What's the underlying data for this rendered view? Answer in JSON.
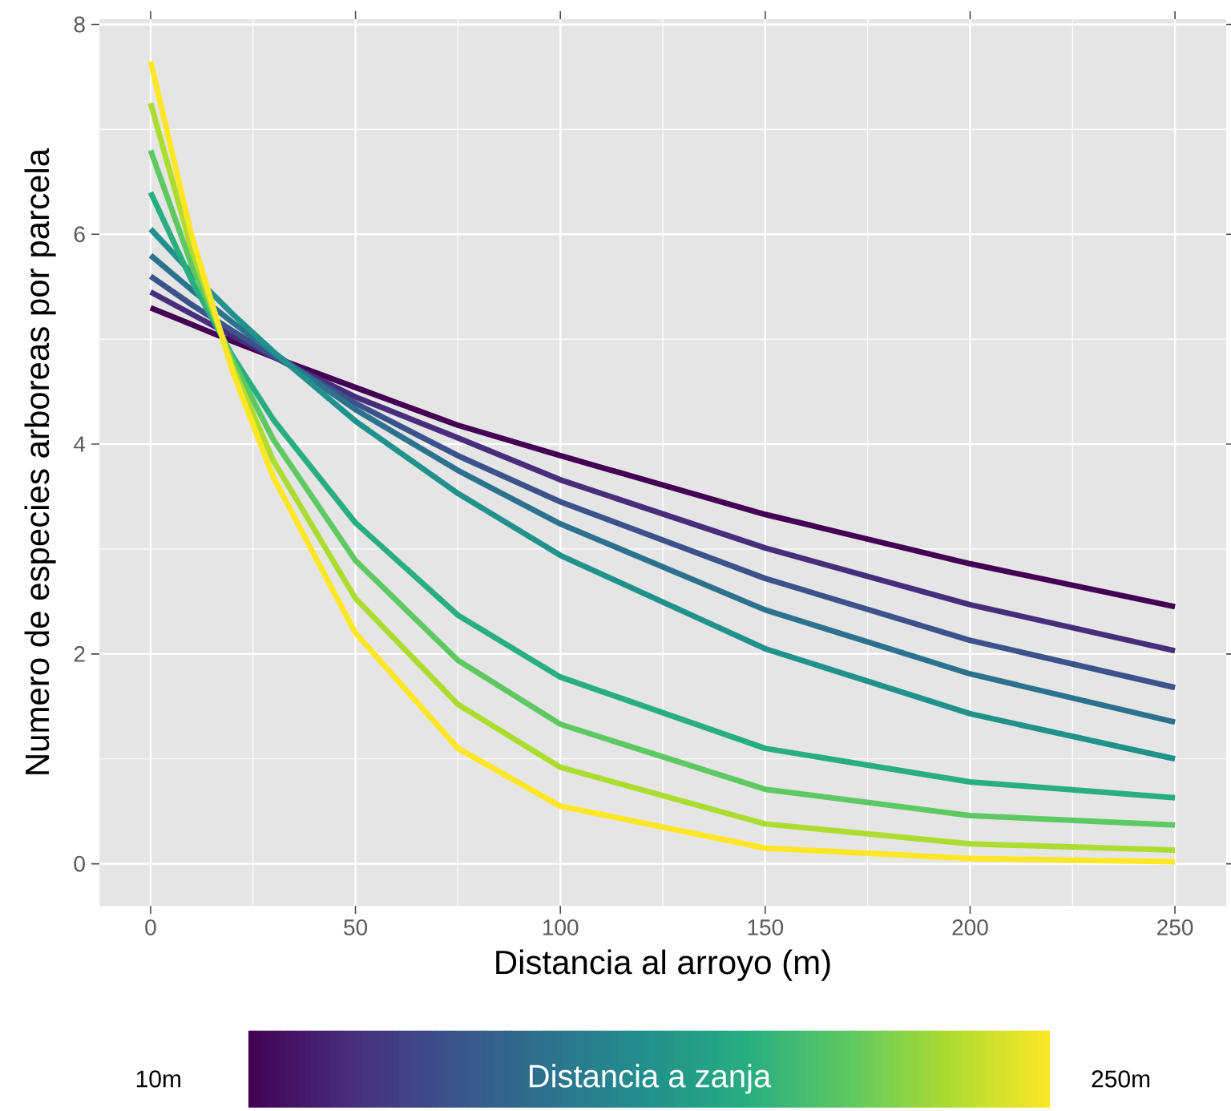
{
  "chart_data": {
    "type": "line",
    "xlabel": "Distancia al arroyo (m)",
    "ylabel": "Numero de especies arboreas por parcela",
    "x": [
      0,
      10,
      20,
      30,
      50,
      75,
      100,
      150,
      200,
      250
    ],
    "series": [
      {
        "color": "#440154",
        "values": [
          5.3,
          5.14,
          4.98,
          4.83,
          4.54,
          4.18,
          3.89,
          3.33,
          2.86,
          2.45
        ]
      },
      {
        "color": "#472d7b",
        "values": [
          5.45,
          5.24,
          5.03,
          4.83,
          4.45,
          4.06,
          3.66,
          3.01,
          2.47,
          2.03
        ]
      },
      {
        "color": "#3b528b",
        "values": [
          5.6,
          5.33,
          5.08,
          4.84,
          4.39,
          3.89,
          3.45,
          2.72,
          2.13,
          1.68
        ]
      },
      {
        "color": "#2c728e",
        "values": [
          5.8,
          5.47,
          5.16,
          4.87,
          4.33,
          3.75,
          3.24,
          2.42,
          1.81,
          1.35
        ]
      },
      {
        "color": "#21918c",
        "values": [
          6.05,
          5.63,
          5.24,
          4.88,
          4.22,
          3.53,
          2.94,
          2.05,
          1.43,
          1.0
        ]
      },
      {
        "color": "#28ae80",
        "values": [
          6.4,
          5.56,
          4.84,
          4.23,
          3.25,
          2.37,
          1.78,
          1.1,
          0.78,
          0.63
        ]
      },
      {
        "color": "#5ec962",
        "values": [
          6.8,
          5.71,
          4.8,
          4.04,
          2.89,
          1.94,
          1.33,
          0.71,
          0.46,
          0.37
        ]
      },
      {
        "color": "#addc30",
        "values": [
          7.25,
          5.86,
          4.74,
          3.84,
          2.53,
          1.52,
          0.92,
          0.38,
          0.19,
          0.13
        ]
      },
      {
        "color": "#fde725",
        "values": [
          7.65,
          5.99,
          4.69,
          3.68,
          2.2,
          1.1,
          0.55,
          0.15,
          0.05,
          0.02
        ]
      }
    ],
    "xlim": [
      -12.5,
      262.5
    ],
    "ylim": [
      -0.4,
      8.05
    ],
    "xticks": [
      0,
      50,
      100,
      150,
      200,
      250
    ],
    "yticks": [
      0,
      2,
      4,
      6,
      8
    ],
    "grid": true,
    "marker": "none",
    "line_style": "solid",
    "clabel": "Distancia a zanja",
    "clim": [
      10,
      250
    ],
    "cticks": [
      {
        "value": 10,
        "label": "10m"
      },
      {
        "value": 250,
        "label": "250m"
      }
    ]
  }
}
